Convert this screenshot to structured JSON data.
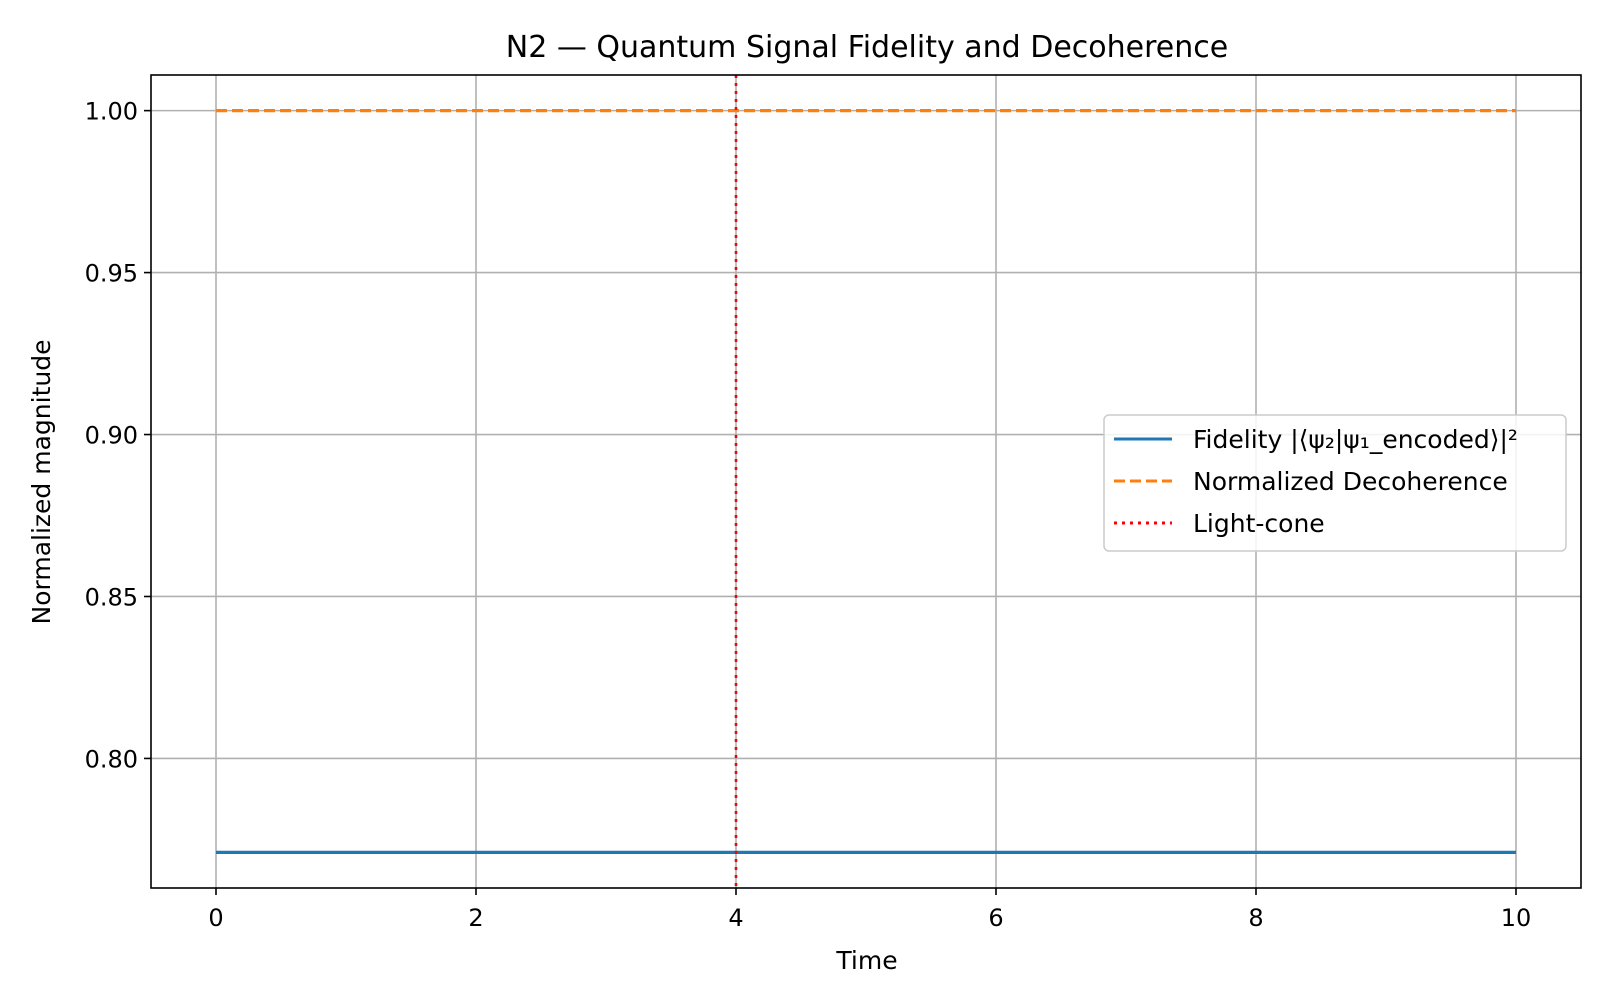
{
  "chart_data": {
    "type": "line",
    "title": "N2 — Quantum Signal Fidelity and Decoherence",
    "xlabel": "Time",
    "ylabel": "Normalized magnitude",
    "xlim": [
      -0.5,
      10.5
    ],
    "ylim": [
      0.76,
      1.011
    ],
    "xticks": [
      0,
      2,
      4,
      6,
      8,
      10
    ],
    "yticks": [
      0.8,
      0.85,
      0.9,
      0.95,
      1.0
    ],
    "xtick_labels": [
      "0",
      "2",
      "4",
      "6",
      "8",
      "10"
    ],
    "ytick_labels": [
      "0.80",
      "0.85",
      "0.90",
      "0.95",
      "1.00"
    ],
    "grid": true,
    "legend_position": "center-right",
    "series": [
      {
        "name": "Fidelity |⟨ψ₂|ψ₁_encoded⟩|²",
        "style": "solid",
        "color": "#1f77b4",
        "x": [
          0,
          10
        ],
        "y": [
          0.771,
          0.771
        ]
      },
      {
        "name": "Normalized Decoherence",
        "style": "dashed",
        "color": "#ff7f0e",
        "x": [
          0,
          10
        ],
        "y": [
          1.0,
          1.0
        ]
      }
    ],
    "vlines": [
      {
        "name": "Light-cone",
        "x": 4,
        "style": "dotted",
        "color": "#ff0000"
      }
    ]
  }
}
